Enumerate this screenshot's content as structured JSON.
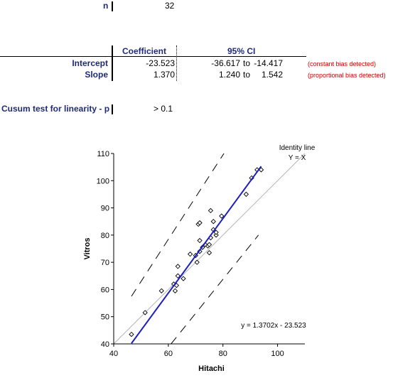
{
  "summary": {
    "n_label": "n",
    "n_value": "32"
  },
  "table": {
    "headers": [
      "Coefficient",
      "95% CI"
    ],
    "rows": [
      {
        "label": "Intercept",
        "coef": "-23.523",
        "ci_low": "-36.617",
        "ci_to": "to",
        "ci_high": "-14.417",
        "note": "(constant bias detected)"
      },
      {
        "label": "Slope",
        "coef": "1.370",
        "ci_low": "1.240",
        "ci_to": "to",
        "ci_high": "1.542",
        "note": "(proportional bias detected)"
      }
    ]
  },
  "cusum": {
    "label": "Cusum test for linearity - p",
    "value": "> 0.1"
  },
  "colors": {
    "regression_line": "#1f1fbf",
    "identity_line": "#b3b3b3",
    "note_text": "#cc0000",
    "label_text": "#1f2a7a"
  },
  "chart_data": {
    "type": "scatter",
    "xlabel": "Hitachi",
    "ylabel": "Vitros",
    "xlim": [
      40,
      110
    ],
    "ylim": [
      40,
      110
    ],
    "xticks": [
      40,
      60,
      80,
      100
    ],
    "yticks": [
      40,
      50,
      60,
      70,
      80,
      90,
      100,
      110
    ],
    "grid": false,
    "points": [
      [
        46.5,
        43.5
      ],
      [
        51.5,
        51.5
      ],
      [
        57.5,
        59.5
      ],
      [
        62,
        62
      ],
      [
        62.5,
        59.5
      ],
      [
        63,
        61.5
      ],
      [
        63.5,
        65
      ],
      [
        63.5,
        68.5
      ],
      [
        65.5,
        64
      ],
      [
        68,
        73
      ],
      [
        70,
        72.5
      ],
      [
        70.5,
        70
      ],
      [
        71,
        84
      ],
      [
        71.5,
        84.5
      ],
      [
        71.5,
        74
      ],
      [
        71.5,
        78
      ],
      [
        72.5,
        75.5
      ],
      [
        73.5,
        76.5
      ],
      [
        74.5,
        76
      ],
      [
        75,
        73.5
      ],
      [
        75,
        76.5
      ],
      [
        75.5,
        89
      ],
      [
        75.5,
        79
      ],
      [
        76.5,
        85
      ],
      [
        76.5,
        82
      ],
      [
        77.5,
        80
      ],
      [
        77.5,
        81
      ],
      [
        79.5,
        87
      ],
      [
        88.5,
        95
      ],
      [
        90.5,
        101
      ],
      [
        92.5,
        104
      ],
      [
        94,
        104
      ]
    ],
    "regression": {
      "slope": 1.3702,
      "intercept": -23.523,
      "x_range": [
        46.5,
        94
      ],
      "label": "y = 1.3702x - 23.523"
    },
    "identity": {
      "label_line1": "Identity line",
      "label_line2": "Y = X"
    },
    "ci_bands": {
      "upper": [
        [
          46.5,
          57.5
        ],
        [
          81,
          111
        ]
      ],
      "lower": [
        [
          61,
          40
        ],
        [
          93,
          80
        ]
      ]
    }
  }
}
